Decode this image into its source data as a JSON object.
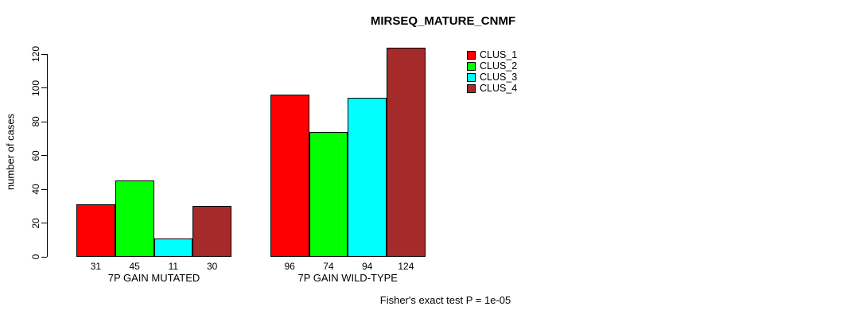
{
  "title": "MIRSEQ_MATURE_CNMF",
  "footer": "Fisher's exact test P = 1e-05",
  "chart_data": {
    "type": "bar",
    "title": "MIRSEQ_MATURE_CNMF",
    "xlabel": "",
    "ylabel": "number of cases",
    "categories": [
      "7P GAIN MUTATED",
      "7P GAIN WILD-TYPE"
    ],
    "series": [
      {
        "name": "CLUS_1",
        "color": "#FF0000",
        "values": [
          31,
          96
        ]
      },
      {
        "name": "CLUS_2",
        "color": "#00FF00",
        "values": [
          45,
          74
        ]
      },
      {
        "name": "CLUS_3",
        "color": "#00FFFF",
        "values": [
          11,
          94
        ]
      },
      {
        "name": "CLUS_4",
        "color": "#A52A2A",
        "values": [
          30,
          124
        ]
      }
    ],
    "yticks": [
      0,
      20,
      40,
      60,
      80,
      100,
      120
    ],
    "ylim": [
      0,
      120
    ],
    "bar_value_labels": [
      [
        31,
        45,
        11,
        30
      ],
      [
        96,
        74,
        94,
        124
      ]
    ],
    "legend_entries": [
      "CLUS_1",
      "CLUS_2",
      "CLUS_3",
      "CLUS_4"
    ],
    "legend_position": "top-right",
    "grid": false,
    "annotation": "Fisher's exact test P = 1e-05"
  }
}
